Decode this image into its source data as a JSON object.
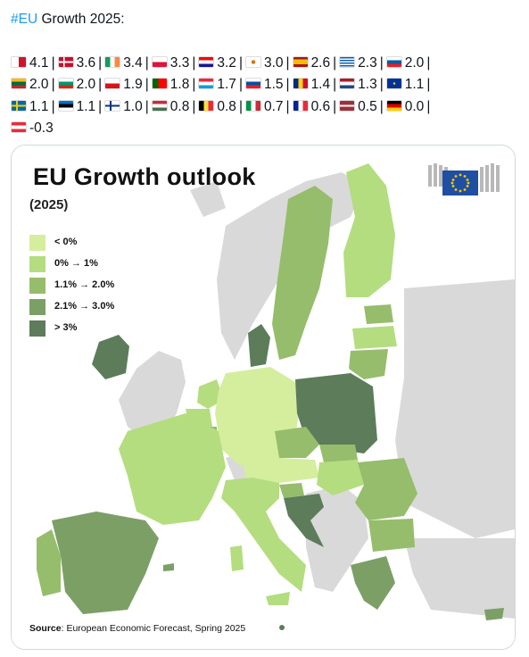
{
  "post": {
    "hashtag": "#EU",
    "heading": " Growth 2025:",
    "entries": [
      {
        "flag": "malta-flag",
        "value": "4.1"
      },
      {
        "flag": "denmark-flag",
        "value": "3.6"
      },
      {
        "flag": "ireland-flag",
        "value": "3.4"
      },
      {
        "flag": "poland-flag",
        "value": "3.3"
      },
      {
        "flag": "croatia-flag",
        "value": "3.2"
      },
      {
        "flag": "cyprus-flag",
        "value": "3.0"
      },
      {
        "flag": "spain-flag",
        "value": "2.6"
      },
      {
        "flag": "greece-flag",
        "value": "2.3"
      },
      {
        "flag": "slovenia-flag",
        "value": "2.0"
      },
      {
        "flag": "lithuania-flag",
        "value": "2.0"
      },
      {
        "flag": "bulgaria-flag",
        "value": "2.0"
      },
      {
        "flag": "czechia-flag",
        "value": "1.9"
      },
      {
        "flag": "portugal-flag",
        "value": "1.8"
      },
      {
        "flag": "luxembourg-flag",
        "value": "1.7"
      },
      {
        "flag": "slovakia-flag",
        "value": "1.5"
      },
      {
        "flag": "romania-flag",
        "value": "1.4"
      },
      {
        "flag": "netherlands-flag",
        "value": "1.3"
      },
      {
        "flag": "eu-flag",
        "value": "1.1"
      },
      {
        "flag": "sweden-flag",
        "value": "1.1"
      },
      {
        "flag": "estonia-flag",
        "value": "1.1"
      },
      {
        "flag": "finland-flag",
        "value": "1.0"
      },
      {
        "flag": "hungary-flag",
        "value": "0.8"
      },
      {
        "flag": "belgium-flag",
        "value": "0.8"
      },
      {
        "flag": "italy-flag",
        "value": "0.7"
      },
      {
        "flag": "france-flag",
        "value": "0.6"
      },
      {
        "flag": "latvia-flag",
        "value": "0.5"
      },
      {
        "flag": "germany-flag",
        "value": "0.0"
      },
      {
        "flag": "austria-flag",
        "value": "-0.3"
      }
    ],
    "separator": "|"
  },
  "map": {
    "title": "EU Growth outlook",
    "subtitle": "(2025)",
    "legend": [
      {
        "label": "< 0%",
        "color": "#d4ee9e"
      },
      {
        "label": "0% → 1%",
        "color": "#b4dd7f"
      },
      {
        "label": "1.1% → 2.0%",
        "color": "#96bd6b"
      },
      {
        "label": "2.1% → 3.0%",
        "color": "#7c9f66"
      },
      {
        "label": "> 3%",
        "color": "#5c7c5a"
      }
    ],
    "source_label": "Source",
    "source_text": ": European Economic Forecast, Spring 2025",
    "background_color": "#d9d9d9"
  }
}
